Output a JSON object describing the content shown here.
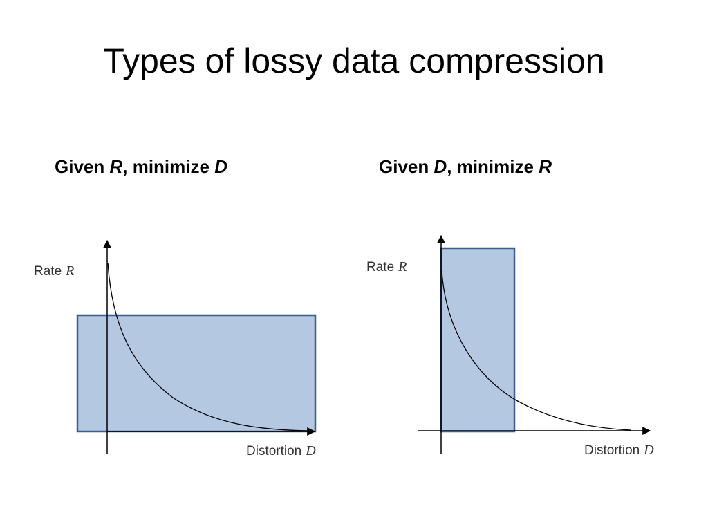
{
  "slide": {
    "title": "Types of lossy data compression"
  },
  "panels": [
    {
      "caption_prefix": "Given ",
      "caption_given": "R",
      "caption_mid": ", minimize ",
      "caption_target": "D",
      "y_axis_label": "Rate",
      "y_axis_var": "R",
      "x_axis_label": "Distortion",
      "x_axis_var": "D"
    },
    {
      "caption_prefix": "Given ",
      "caption_given": "D",
      "caption_mid": ", minimize ",
      "caption_target": "R",
      "y_axis_label": "Rate",
      "y_axis_var": "R",
      "x_axis_label": "Distortion",
      "x_axis_var": "D"
    }
  ],
  "colors": {
    "region_fill": "#b4c8e2",
    "region_stroke": "#3a5f8f",
    "axis": "#000000",
    "curve": "#000000"
  }
}
